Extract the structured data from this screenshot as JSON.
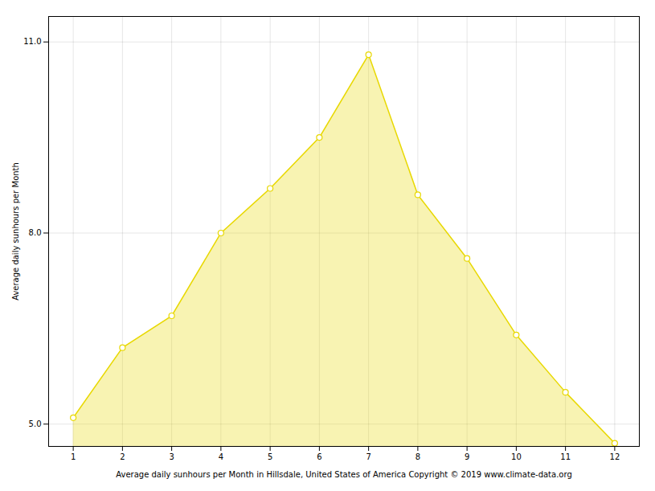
{
  "chart_data": {
    "type": "area",
    "x": [
      1,
      2,
      3,
      4,
      5,
      6,
      7,
      8,
      9,
      10,
      11,
      12
    ],
    "values": [
      5.1,
      6.2,
      6.7,
      8.0,
      8.7,
      9.5,
      10.8,
      8.6,
      7.6,
      6.4,
      5.5,
      4.7
    ],
    "color": "#E8D800",
    "marker": "circle",
    "ylabel": "Average daily sunhours per Month",
    "xlabel": "Average daily sunhours per Month in Hillsdale, United States of America Copyright © 2019 www.climate-data.org",
    "xlim": [
      0.5,
      12.5
    ],
    "xticks": [
      1,
      2,
      3,
      4,
      5,
      6,
      7,
      8,
      9,
      10,
      11,
      12
    ],
    "ylim": [
      4.65,
      11.4
    ],
    "yticks": [
      5,
      8,
      11
    ],
    "grid": true
  }
}
